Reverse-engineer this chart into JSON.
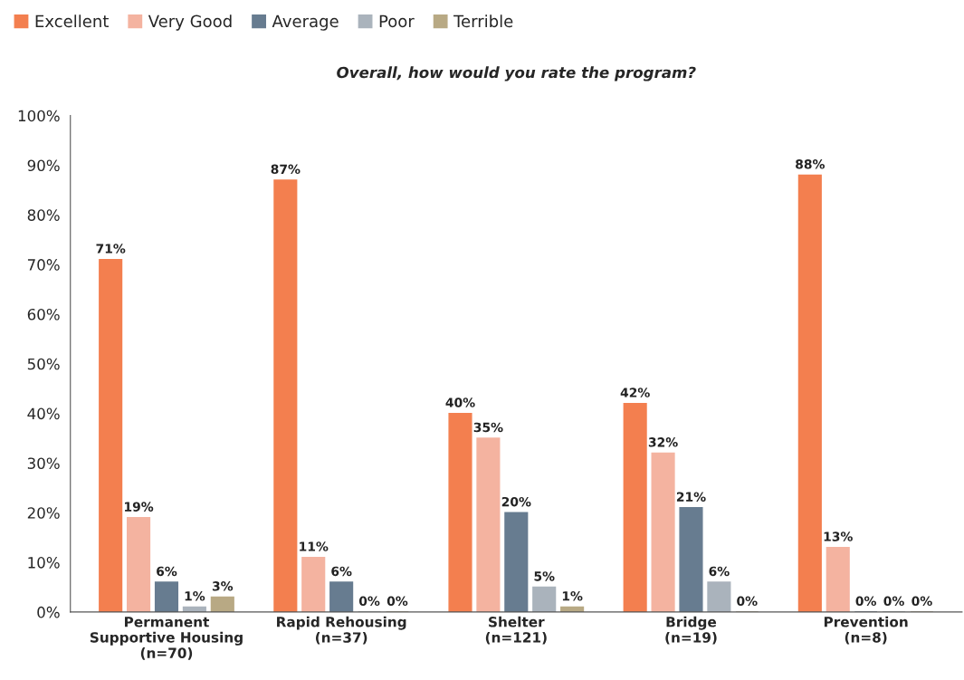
{
  "chart_data": {
    "type": "bar",
    "title": "Overall, how would you rate the program?",
    "categories": [
      "Permanent\nSupportive Housing\n(n=70)",
      "Rapid Rehousing\n(n=37)",
      "Shelter\n(n=121)",
      "Bridge\n(n=19)",
      "Prevention\n(n=8)"
    ],
    "series": [
      {
        "name": "Excellent",
        "color": "#f37f4f",
        "values": [
          71,
          87,
          40,
          42,
          88
        ],
        "value_labels": [
          "71%",
          "87%",
          "40%",
          "42%",
          "88%"
        ]
      },
      {
        "name": "Very Good",
        "color": "#f4b3a0",
        "values": [
          19,
          11,
          35,
          32,
          13
        ],
        "value_labels": [
          "19%",
          "11%",
          "35%",
          "32%",
          "13%"
        ]
      },
      {
        "name": "Average",
        "color": "#677c90",
        "values": [
          6,
          6,
          20,
          21,
          0
        ],
        "value_labels": [
          "6%",
          "6%",
          "20%",
          "21%",
          "0%"
        ]
      },
      {
        "name": "Poor",
        "color": "#aab3bc",
        "values": [
          1,
          0,
          5,
          6,
          0
        ],
        "value_labels": [
          "1%",
          "0%",
          "5%",
          "6%",
          "0%"
        ]
      },
      {
        "name": "Terrible",
        "color": "#b8a984",
        "values": [
          3,
          0,
          1,
          0,
          0
        ],
        "value_labels": [
          "3%",
          "0%",
          "1%",
          "0%",
          "0%"
        ]
      }
    ],
    "ylim": [
      0,
      100
    ],
    "yticks": [
      {
        "value": 0,
        "label": "0%"
      },
      {
        "value": 10,
        "label": "10%"
      },
      {
        "value": 20,
        "label": "20%"
      },
      {
        "value": 30,
        "label": "30%"
      },
      {
        "value": 40,
        "label": "40%"
      },
      {
        "value": 50,
        "label": "50%"
      },
      {
        "value": 60,
        "label": "60%"
      },
      {
        "value": 70,
        "label": "70%"
      },
      {
        "value": 80,
        "label": "80%"
      },
      {
        "value": 90,
        "label": "90%"
      },
      {
        "value": 100,
        "label": "100%"
      }
    ],
    "grid": false,
    "legend": "top left"
  }
}
